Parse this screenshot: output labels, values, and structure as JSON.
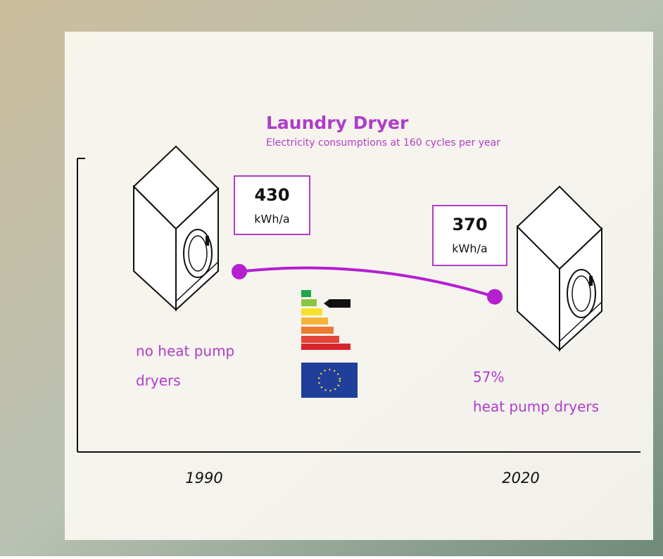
{
  "chart_data": {
    "type": "line",
    "title": "Laundry Dryer",
    "subtitle": "Electricity consumptions at 160 cycles per year",
    "categories": [
      "1990",
      "2020"
    ],
    "values": [
      430,
      370
    ],
    "unit": "kWh/a",
    "color": "#b41fd0",
    "ylim": [
      0,
      700
    ],
    "annotations": [
      [
        "no heat pump",
        "dryers"
      ],
      [
        "57%",
        "heat pump dryers"
      ]
    ]
  }
}
